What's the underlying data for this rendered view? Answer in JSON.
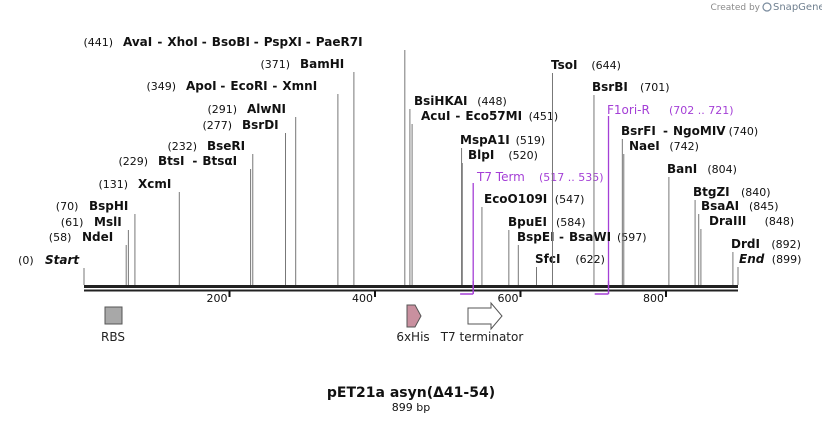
{
  "credit": {
    "prefix": "Created by",
    "brand": "SnapGene"
  },
  "map_title": "pET21a asyn(Δ41-54)",
  "map_length_label": "899 bp",
  "sequence_length": 899,
  "ruler": {
    "ticks": [
      "200",
      "400",
      "600",
      "800"
    ]
  },
  "sites": [
    {
      "id": "start",
      "pos": 0,
      "names": [
        "Start"
      ],
      "pos_text": "(0)",
      "italic": true
    },
    {
      "id": "ndei",
      "pos": 58,
      "names": [
        "NdeI"
      ],
      "pos_text": "(58)"
    },
    {
      "id": "msli",
      "pos": 61,
      "names": [
        "MslI"
      ],
      "pos_text": "(61)"
    },
    {
      "id": "bsphi",
      "pos": 70,
      "names": [
        "BspHI"
      ],
      "pos_text": "(70)"
    },
    {
      "id": "xcmi",
      "pos": 131,
      "names": [
        "XcmI"
      ],
      "pos_text": "(131)"
    },
    {
      "id": "btsi",
      "pos": 229,
      "names": [
        "BtsI",
        "BtsαI"
      ],
      "pos_text": "(229)"
    },
    {
      "id": "bseri",
      "pos": 232,
      "names": [
        "BseRI"
      ],
      "pos_text": "(232)"
    },
    {
      "id": "bsrdi",
      "pos": 277,
      "names": [
        "BsrDI"
      ],
      "pos_text": "(277)"
    },
    {
      "id": "alwni",
      "pos": 291,
      "names": [
        "AlwNI"
      ],
      "pos_text": "(291)"
    },
    {
      "id": "apoi",
      "pos": 349,
      "names": [
        "ApoI",
        "EcoRI",
        "XmnI"
      ],
      "pos_text": "(349)"
    },
    {
      "id": "bamhi",
      "pos": 371,
      "names": [
        "BamHI"
      ],
      "pos_text": "(371)"
    },
    {
      "id": "avai",
      "pos": 441,
      "names": [
        "AvaI",
        "XhoI",
        "BsoBI",
        "PspXI",
        "PaeR7I"
      ],
      "pos_text": "(441)"
    },
    {
      "id": "bsihkai",
      "pos": 448,
      "names": [
        "BsiHKAI"
      ],
      "pos_text": "(448)",
      "pos_after": true
    },
    {
      "id": "acui",
      "pos": 451,
      "names": [
        "AcuI",
        "Eco57MI"
      ],
      "pos_text": "(451)",
      "pos_after": true
    },
    {
      "id": "mspa1i",
      "pos": 519,
      "names": [
        "MspA1I"
      ],
      "pos_text": "(519)",
      "pos_after": true
    },
    {
      "id": "blpi",
      "pos": 520,
      "names": [
        "BlpI"
      ],
      "pos_text": "(520)",
      "pos_after": true
    },
    {
      "id": "eco0109i",
      "pos": 547,
      "names": [
        "EcoO109I"
      ],
      "pos_text": "(547)",
      "pos_after": true
    },
    {
      "id": "bpuei",
      "pos": 584,
      "names": [
        "BpuEI"
      ],
      "pos_text": "(584)",
      "pos_after": true
    },
    {
      "id": "bspei",
      "pos": 597,
      "names": [
        "BspEI",
        "BsaWI"
      ],
      "pos_text": "(597)",
      "pos_after": true
    },
    {
      "id": "sfci",
      "pos": 622,
      "names": [
        "SfcI"
      ],
      "pos_text": "(622)",
      "pos_after": true
    },
    {
      "id": "tsoi",
      "pos": 644,
      "names": [
        "TsoI"
      ],
      "pos_text": "(644)",
      "pos_after": true
    },
    {
      "id": "bsrbi",
      "pos": 701,
      "names": [
        "BsrBI"
      ],
      "pos_text": "(701)",
      "pos_after": true
    },
    {
      "id": "bsrfi",
      "pos": 740,
      "names": [
        "BsrFI",
        "NgoMIV"
      ],
      "pos_text": "(740)",
      "pos_after": true
    },
    {
      "id": "naei",
      "pos": 742,
      "names": [
        "NaeI"
      ],
      "pos_text": "(742)",
      "pos_after": true
    },
    {
      "id": "bani",
      "pos": 804,
      "names": [
        "BanI"
      ],
      "pos_text": "(804)",
      "pos_after": true
    },
    {
      "id": "btgzi",
      "pos": 840,
      "names": [
        "BtgZI"
      ],
      "pos_text": "(840)",
      "pos_after": true
    },
    {
      "id": "bsaai",
      "pos": 845,
      "names": [
        "BsaAI"
      ],
      "pos_text": "(845)",
      "pos_after": true
    },
    {
      "id": "draiii",
      "pos": 848,
      "names": [
        "DraIII"
      ],
      "pos_text": "(848)",
      "pos_after": true
    },
    {
      "id": "drdi",
      "pos": 892,
      "names": [
        "DrdI"
      ],
      "pos_text": "(892)",
      "pos_after": true
    },
    {
      "id": "end",
      "pos": 899,
      "names": [
        "End"
      ],
      "pos_text": "(899)",
      "pos_after": true,
      "italic": true
    }
  ],
  "primers": [
    {
      "id": "t7term",
      "name": "T7 Term",
      "range_text": "(517 .. 535)",
      "start": 517,
      "end": 535
    },
    {
      "id": "f1ori",
      "name": "F1ori-R",
      "range_text": "(702 .. 721)",
      "start": 702,
      "end": 721
    }
  ],
  "features": [
    {
      "id": "rbs",
      "label": "RBS",
      "kind": "box",
      "color": "#a8a8a8"
    },
    {
      "id": "his",
      "label": "6xHis",
      "kind": "arrow",
      "color": "#c9909f"
    },
    {
      "id": "t7t",
      "label": "T7 terminator",
      "kind": "arrow",
      "color": "#ffffff"
    }
  ],
  "colors": {
    "primer": "#a43fd6",
    "backbone": "#222222",
    "site_line": "#777777"
  }
}
